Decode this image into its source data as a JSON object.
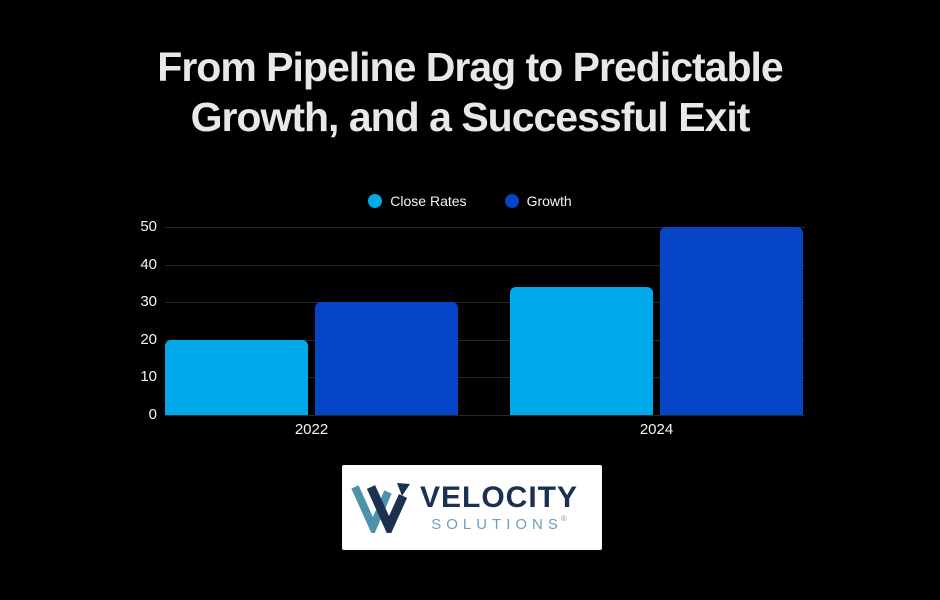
{
  "title": {
    "line1": "From Pipeline Drag to Predictable",
    "line2": "Growth, and a Successful Exit"
  },
  "chart_data": {
    "type": "bar",
    "categories": [
      "2022",
      "2024"
    ],
    "series": [
      {
        "name": "Close Rates",
        "color": "#00A9EA",
        "values": [
          20,
          34
        ]
      },
      {
        "name": "Growth",
        "color": "#0646C6",
        "values": [
          30,
          50
        ]
      }
    ],
    "yticks": [
      0,
      10,
      20,
      30,
      40,
      50
    ],
    "ylim": [
      0,
      50
    ],
    "grid": true,
    "legend_position": "top",
    "background": "#000000",
    "gridline_color": "#272727",
    "tick_color": "#f5f5f5"
  },
  "logo": {
    "name_top": "VELOCITY",
    "name_bottom": "SOLUTIONS",
    "registered": "®",
    "colors": {
      "navy": "#1c3050",
      "steel": "#6d9fbb",
      "teal": "#4d91ac",
      "card_bg": "#ffffff"
    }
  }
}
